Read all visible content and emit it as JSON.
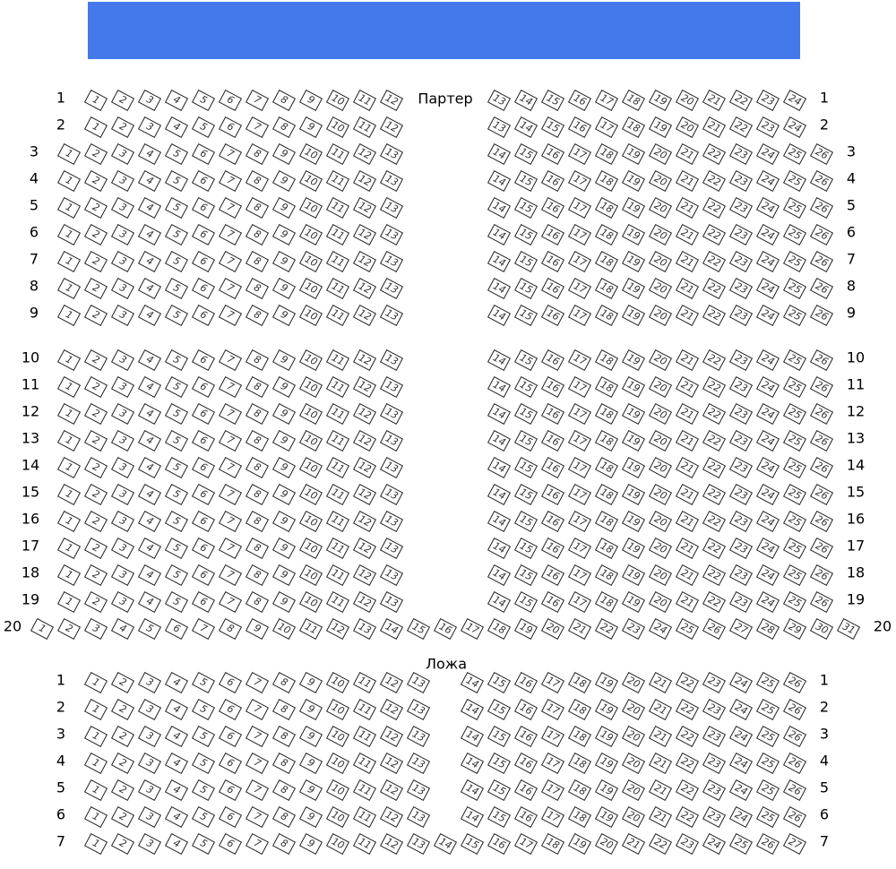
{
  "colors": {
    "stage": "#4479ec",
    "seat_border": "#222222"
  },
  "sections": [
    {
      "name": "Партер",
      "rows": [
        {
          "row": "1",
          "blocks": [
            {
              "from": 1,
              "to": 12
            },
            {
              "from": 13,
              "to": 24
            }
          ]
        },
        {
          "row": "2",
          "blocks": [
            {
              "from": 1,
              "to": 12
            },
            {
              "from": 13,
              "to": 24
            }
          ]
        },
        {
          "row": "3",
          "blocks": [
            {
              "from": 1,
              "to": 13
            },
            {
              "from": 14,
              "to": 26
            }
          ]
        },
        {
          "row": "4",
          "blocks": [
            {
              "from": 1,
              "to": 13
            },
            {
              "from": 14,
              "to": 26
            }
          ]
        },
        {
          "row": "5",
          "blocks": [
            {
              "from": 1,
              "to": 13
            },
            {
              "from": 14,
              "to": 26
            }
          ]
        },
        {
          "row": "6",
          "blocks": [
            {
              "from": 1,
              "to": 13
            },
            {
              "from": 14,
              "to": 26
            }
          ]
        },
        {
          "row": "7",
          "blocks": [
            {
              "from": 1,
              "to": 13
            },
            {
              "from": 14,
              "to": 26
            }
          ]
        },
        {
          "row": "8",
          "blocks": [
            {
              "from": 1,
              "to": 13
            },
            {
              "from": 14,
              "to": 26
            }
          ]
        },
        {
          "row": "9",
          "blocks": [
            {
              "from": 1,
              "to": 13
            },
            {
              "from": 14,
              "to": 26
            }
          ]
        },
        {
          "row": "10",
          "blocks": [
            {
              "from": 1,
              "to": 13
            },
            {
              "from": 14,
              "to": 26
            }
          ]
        },
        {
          "row": "11",
          "blocks": [
            {
              "from": 1,
              "to": 13
            },
            {
              "from": 14,
              "to": 26
            }
          ]
        },
        {
          "row": "12",
          "blocks": [
            {
              "from": 1,
              "to": 13
            },
            {
              "from": 14,
              "to": 26
            }
          ]
        },
        {
          "row": "13",
          "blocks": [
            {
              "from": 1,
              "to": 13
            },
            {
              "from": 14,
              "to": 26
            }
          ]
        },
        {
          "row": "14",
          "blocks": [
            {
              "from": 1,
              "to": 13
            },
            {
              "from": 14,
              "to": 26
            }
          ]
        },
        {
          "row": "15",
          "blocks": [
            {
              "from": 1,
              "to": 13
            },
            {
              "from": 14,
              "to": 26
            }
          ]
        },
        {
          "row": "16",
          "blocks": [
            {
              "from": 1,
              "to": 13
            },
            {
              "from": 14,
              "to": 26
            }
          ]
        },
        {
          "row": "17",
          "blocks": [
            {
              "from": 1,
              "to": 13
            },
            {
              "from": 14,
              "to": 26
            }
          ]
        },
        {
          "row": "18",
          "blocks": [
            {
              "from": 1,
              "to": 13
            },
            {
              "from": 14,
              "to": 26
            }
          ]
        },
        {
          "row": "19",
          "blocks": [
            {
              "from": 1,
              "to": 13
            },
            {
              "from": 14,
              "to": 26
            }
          ]
        },
        {
          "row": "20",
          "blocks": [
            {
              "from": 1,
              "to": 31
            }
          ]
        }
      ]
    },
    {
      "name": "Ложа",
      "rows": [
        {
          "row": "1",
          "blocks": [
            {
              "from": 1,
              "to": 13
            },
            {
              "from": 14,
              "to": 26
            }
          ]
        },
        {
          "row": "2",
          "blocks": [
            {
              "from": 1,
              "to": 13
            },
            {
              "from": 14,
              "to": 26
            }
          ]
        },
        {
          "row": "3",
          "blocks": [
            {
              "from": 1,
              "to": 13
            },
            {
              "from": 14,
              "to": 26
            }
          ]
        },
        {
          "row": "4",
          "blocks": [
            {
              "from": 1,
              "to": 13
            },
            {
              "from": 14,
              "to": 26
            }
          ]
        },
        {
          "row": "5",
          "blocks": [
            {
              "from": 1,
              "to": 13
            },
            {
              "from": 14,
              "to": 26
            }
          ]
        },
        {
          "row": "6",
          "blocks": [
            {
              "from": 1,
              "to": 13
            },
            {
              "from": 14,
              "to": 26
            }
          ]
        },
        {
          "row": "7",
          "blocks": [
            {
              "from": 1,
              "to": 27
            }
          ]
        }
      ]
    }
  ]
}
